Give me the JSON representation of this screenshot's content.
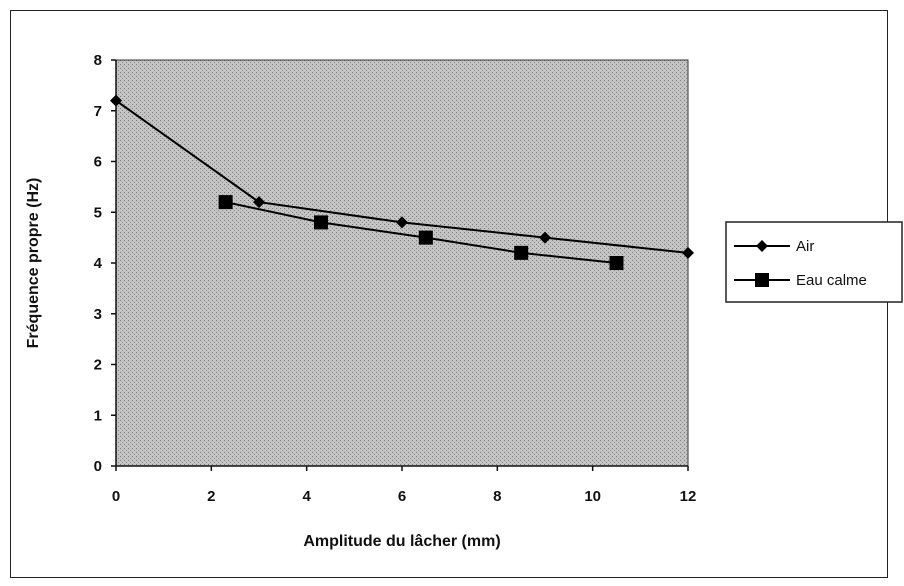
{
  "chart_data": {
    "type": "line",
    "xlabel": "Amplitude du lâcher (mm)",
    "ylabel": "Fréquence propre (Hz)",
    "xlim": [
      0,
      12
    ],
    "ylim": [
      0,
      8
    ],
    "x_ticks": [
      "0",
      "2",
      "4",
      "6",
      "8",
      "10",
      "12"
    ],
    "y_ticks": [
      "0",
      "1",
      "2",
      "3",
      "4",
      "5",
      "6",
      "7",
      "8"
    ],
    "grid": false,
    "legend_position": "right",
    "plot_background": "#b8b8b8",
    "series": [
      {
        "name": "Air",
        "marker": "diamond",
        "color": "#000000",
        "points": [
          {
            "x": 0,
            "y": 7.2
          },
          {
            "x": 3,
            "y": 5.2
          },
          {
            "x": 6,
            "y": 4.8
          },
          {
            "x": 9,
            "y": 4.5
          },
          {
            "x": 12,
            "y": 4.2
          }
        ]
      },
      {
        "name": "Eau calme",
        "marker": "square",
        "color": "#000000",
        "points": [
          {
            "x": 2.3,
            "y": 5.2
          },
          {
            "x": 4.3,
            "y": 4.8
          },
          {
            "x": 6.5,
            "y": 4.5
          },
          {
            "x": 8.5,
            "y": 4.2
          },
          {
            "x": 10.5,
            "y": 4.0
          }
        ]
      }
    ]
  }
}
